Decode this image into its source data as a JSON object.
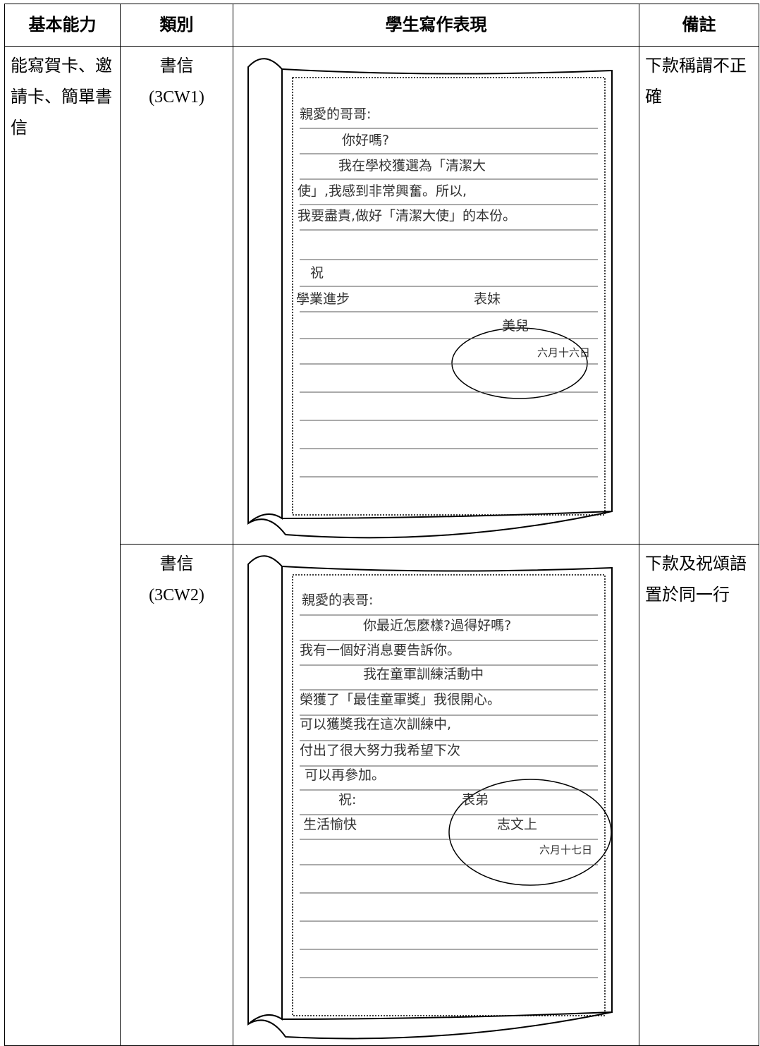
{
  "table": {
    "headers": [
      "基本能力",
      "類別",
      "學生寫作表現",
      "備註"
    ],
    "rows": [
      {
        "ability": "能寫賀卡、邀請卡、簡單書信",
        "category": "書信",
        "code": "(3CW1)",
        "note": "下款稱謂不正確",
        "letter": {
          "salutation": "親愛的哥哥:",
          "body": [
            "你好嗎?",
            "我在學校獲選為「清潔大",
            "使」,我感到非常興奮。所以,",
            "我要盡責,做好「清潔大使」的本份。"
          ],
          "blessing": "祝",
          "wish": "學業進步",
          "relation": "表妹",
          "name": "美兒",
          "date": "六月十六日"
        }
      },
      {
        "category": "書信",
        "code": "(3CW2)",
        "note": "下款及祝頌語置於同一行",
        "letter": {
          "salutation": "親愛的表哥:",
          "body": [
            "你最近怎麼樣?過得好嗎?",
            "我有一個好消息要告訴你。",
            "我在童軍訓練活動中",
            "榮獲了「最佳童軍獎」我很開心。",
            "可以獲獎我在這次訓練中,",
            "付出了很大努力我希望下次",
            "可以再參加。"
          ],
          "blessing": "祝:",
          "wish": "生活愉快",
          "relation": "表弟",
          "name": "志文上",
          "date": "六月十七日"
        }
      }
    ]
  }
}
